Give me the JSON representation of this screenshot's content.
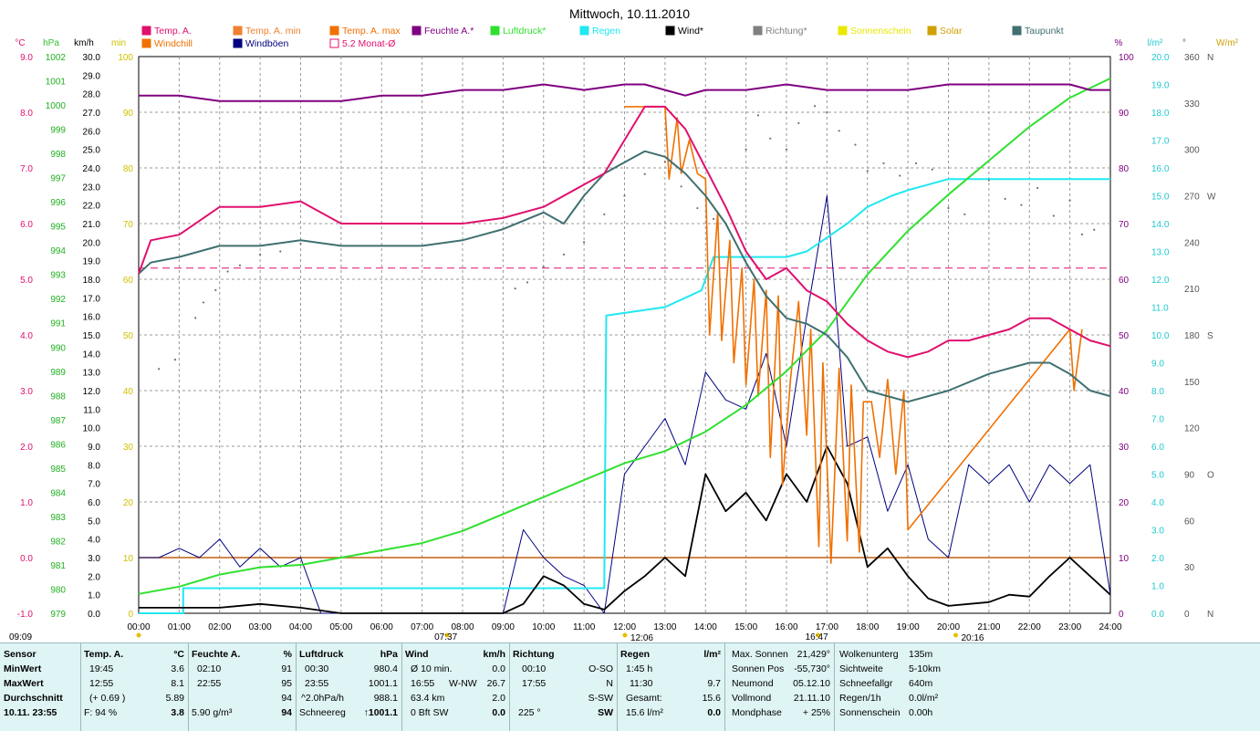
{
  "title": "Mittwoch, 10.11.2010",
  "colors": {
    "temp": "#e0106e",
    "temp_min": "#f08030",
    "temp_max": "#f07000",
    "windchill": "#f07000",
    "windboeen": "#000080",
    "humidity": "#800080",
    "pressure": "#30e030",
    "rain": "#20e8f0",
    "wind": "#000000",
    "direction": "#707070",
    "sun": "#e8e800",
    "solar": "#d0a000",
    "dewpoint": "#407070"
  },
  "legend": [
    {
      "label": "Temp. A.",
      "color": "#e0106e",
      "row": 1
    },
    {
      "label": "Temp. A. min",
      "color": "#f08030",
      "row": 1
    },
    {
      "label": "Temp. A. max",
      "color": "#f07000",
      "row": 1
    },
    {
      "label": "Feuchte A.*",
      "color": "#800080",
      "row": 1
    },
    {
      "label": "Luftdruck*",
      "color": "#30e030",
      "row": 1
    },
    {
      "label": "Regen",
      "color": "#20e8f0",
      "row": 1
    },
    {
      "label": "Wind*",
      "color": "#000000",
      "row": 1
    },
    {
      "label": "Richtung*",
      "color": "#808080",
      "row": 1
    },
    {
      "label": "Sonnenschein",
      "color": "#e8e800",
      "row": 1
    },
    {
      "label": "Solar",
      "color": "#d0a000",
      "row": 1
    },
    {
      "label": "Taupunkt",
      "color": "#407070",
      "row": 1
    },
    {
      "label": "Windchill",
      "color": "#f07000",
      "row": 2
    },
    {
      "label": "Windböen",
      "color": "#000080",
      "row": 2
    },
    {
      "label": "5.2 Monat-Ø",
      "color": "#e0106e",
      "row": 2
    }
  ],
  "unit_labels": {
    "temp": "°C",
    "hpa": "hPa",
    "kmh": "km/h",
    "min": "min",
    "pct": "%",
    "lm2": "l/m²",
    "deg": "°",
    "wm2": "W/m²"
  },
  "axes": {
    "temp": {
      "min": -1.0,
      "max": 9.0,
      "step": 1.0
    },
    "hpa": {
      "min": 979,
      "max": 1002,
      "step": 1
    },
    "kmh": {
      "min": 0,
      "max": 30,
      "step": 1
    },
    "min": {
      "min": 0,
      "max": 100,
      "step": 10
    },
    "pct": {
      "min": 0,
      "max": 100,
      "step": 10
    },
    "lm2": {
      "min": 0,
      "max": 20,
      "step": 1
    },
    "deg": {
      "min": 0,
      "max": 360,
      "step": 30
    },
    "wm2": {
      "min": 0,
      "max": 360
    }
  },
  "dir_labels": [
    {
      "v": 0,
      "t": "N"
    },
    {
      "v": 90,
      "t": "O"
    },
    {
      "v": 180,
      "t": "S"
    },
    {
      "v": 270,
      "t": "W"
    },
    {
      "v": 360,
      "t": "N"
    }
  ],
  "x_ticks": [
    "00:00",
    "01:00",
    "02:00",
    "03:00",
    "04:00",
    "05:00",
    "06:00",
    "07:00",
    "08:00",
    "09:00",
    "10:00",
    "11:00",
    "12:00",
    "13:00",
    "14:00",
    "15:00",
    "16:00",
    "17:00",
    "18:00",
    "19:00",
    "20:00",
    "21:00",
    "22:00",
    "23:00",
    "24:00"
  ],
  "sun_marks": [
    {
      "label": "09:09",
      "x": 0.0,
      "row": 2
    },
    {
      "label": "07:37",
      "x": 7.62,
      "row": 2
    },
    {
      "label": "12:06",
      "x": 12.1,
      "row": 1
    },
    {
      "label": "16:47",
      "x": 16.78,
      "row": 2
    },
    {
      "label": "20:16",
      "x": 20.27,
      "row": 1
    }
  ],
  "chart_data": {
    "type": "line",
    "x_unit": "hours",
    "xlim": [
      0,
      24
    ],
    "reference_line": {
      "name": "5.2 Monat-Ø",
      "axis": "temp",
      "value": 5.2
    },
    "solar_line": {
      "axis": "kmh",
      "value": 3.0
    },
    "series": [
      {
        "name": "Feuchte A.*",
        "axis": "pct",
        "x": [
          0,
          1,
          2,
          3,
          4,
          5,
          6,
          7,
          8,
          9,
          10,
          11,
          12,
          12.5,
          13,
          13.5,
          14,
          15,
          16,
          17,
          18,
          19,
          20,
          21,
          22,
          23,
          23.5,
          24
        ],
        "y": [
          93,
          93,
          92,
          92,
          92,
          92,
          93,
          93,
          94,
          94,
          95,
          94,
          95,
          95,
          94,
          93,
          94,
          94,
          95,
          94,
          94,
          94,
          95,
          95,
          95,
          95,
          94,
          94
        ]
      },
      {
        "name": "Temp. A.",
        "axis": "temp",
        "x": [
          0,
          0.3,
          1,
          2,
          3,
          4,
          5,
          6,
          7,
          8,
          9,
          10,
          11,
          11.5,
          12,
          12.5,
          13,
          13.5,
          14,
          14.5,
          15,
          15.5,
          16,
          16.5,
          17,
          17.5,
          18,
          18.5,
          19,
          19.5,
          20,
          20.5,
          21,
          21.5,
          22,
          22.5,
          23,
          23.5,
          24
        ],
        "y": [
          5.1,
          5.7,
          5.8,
          6.3,
          6.3,
          6.4,
          6.0,
          6.0,
          6.0,
          6.0,
          6.1,
          6.3,
          6.7,
          6.9,
          7.5,
          8.1,
          8.1,
          7.7,
          7.0,
          6.3,
          5.5,
          5.0,
          5.2,
          4.8,
          4.6,
          4.2,
          3.9,
          3.7,
          3.6,
          3.7,
          3.9,
          3.9,
          4.0,
          4.1,
          4.3,
          4.3,
          4.1,
          3.9,
          3.8
        ]
      },
      {
        "name": "Taupunkt",
        "axis": "temp",
        "x": [
          0,
          0.3,
          1,
          2,
          3,
          4,
          5,
          6,
          7,
          8,
          9,
          10,
          10.5,
          11,
          11.5,
          12,
          12.5,
          13,
          13.5,
          14,
          14.5,
          15,
          15.5,
          16,
          16.5,
          17,
          17.5,
          18,
          18.5,
          19,
          19.5,
          20,
          21,
          22,
          22.5,
          23,
          23.5,
          24
        ],
        "y": [
          5.1,
          5.3,
          5.4,
          5.6,
          5.6,
          5.7,
          5.6,
          5.6,
          5.6,
          5.7,
          5.9,
          6.2,
          6.0,
          6.5,
          6.9,
          7.1,
          7.3,
          7.2,
          6.9,
          6.5,
          6.0,
          5.3,
          4.7,
          4.3,
          4.2,
          4.0,
          3.6,
          3.0,
          2.9,
          2.8,
          2.9,
          3.0,
          3.3,
          3.5,
          3.5,
          3.3,
          3.0,
          2.9
        ]
      },
      {
        "name": "Luftdruck*",
        "axis": "hpa",
        "x": [
          0,
          1,
          2,
          3,
          4,
          5,
          6,
          7,
          8,
          9,
          10,
          11,
          12,
          13,
          14,
          15,
          16,
          17,
          18,
          19,
          20,
          21,
          22,
          23,
          24
        ],
        "y": [
          979.8,
          980.1,
          980.6,
          980.9,
          981.0,
          981.3,
          981.6,
          981.9,
          982.4,
          983.1,
          983.8,
          984.5,
          985.2,
          985.7,
          986.5,
          987.6,
          989.0,
          990.7,
          993.0,
          994.8,
          996.3,
          997.7,
          999.1,
          1000.3,
          1001.1
        ]
      },
      {
        "name": "Regen",
        "axis": "lm2",
        "x": [
          0,
          1.1,
          1.1,
          11.5,
          11.55,
          13,
          13.9,
          14.2,
          15,
          16,
          16.5,
          17,
          17.5,
          18,
          18.6,
          19,
          19.5,
          20,
          20,
          24
        ],
        "y": [
          0,
          0,
          0.9,
          0.9,
          10.7,
          11.0,
          11.6,
          12.8,
          12.8,
          12.8,
          13.0,
          13.5,
          14.0,
          14.6,
          15.0,
          15.2,
          15.4,
          15.6,
          15.6,
          15.6
        ]
      },
      {
        "name": "Wind*",
        "axis": "kmh",
        "x": [
          0,
          1,
          2,
          3,
          4,
          5,
          6,
          7,
          8,
          9,
          9.5,
          10,
          10.5,
          11,
          11.5,
          12,
          12.5,
          13,
          13.5,
          14,
          14.5,
          15,
          15.5,
          16,
          16.5,
          17,
          17.5,
          18,
          18.5,
          19,
          19.5,
          20,
          20.5,
          21,
          21.5,
          22,
          22.5,
          23,
          23.5,
          24
        ],
        "y": [
          0.3,
          0.3,
          0.3,
          0.5,
          0.3,
          0,
          0,
          0,
          0,
          0,
          0.5,
          2.0,
          1.5,
          0.5,
          0.2,
          1.2,
          2.0,
          3.0,
          2.0,
          7.5,
          5.5,
          6.5,
          5.0,
          7.5,
          6.0,
          9.0,
          7.0,
          2.5,
          3.5,
          2.0,
          0.8,
          0.4,
          0.5,
          0.6,
          1.0,
          0.9,
          2.0,
          3.0,
          2.0,
          1.0
        ]
      },
      {
        "name": "Windböen",
        "axis": "kmh",
        "x": [
          0,
          0.5,
          1,
          1.5,
          2,
          2.5,
          3,
          3.5,
          4,
          4.5,
          9,
          9.5,
          10,
          10.5,
          11,
          11.5,
          12,
          12.5,
          13,
          13.5,
          14,
          14.5,
          15,
          15.5,
          16,
          16.5,
          17,
          17.5,
          18,
          18.5,
          19,
          19.5,
          20,
          20.5,
          21,
          21.5,
          22,
          22.5,
          23,
          23.5,
          24
        ],
        "y": [
          3.0,
          3.0,
          3.5,
          3.0,
          4.0,
          2.5,
          3.5,
          2.5,
          3.0,
          0,
          0,
          4.5,
          3.0,
          2.0,
          1.5,
          0,
          7.5,
          9.0,
          10.5,
          8.0,
          13.0,
          11.5,
          11.0,
          14.0,
          9.0,
          16.0,
          22.5,
          9.0,
          9.5,
          5.5,
          8.0,
          4.0,
          3.0,
          8.0,
          7.0,
          8.0,
          6.0,
          8.0,
          7.0,
          8.0,
          1.0
        ]
      },
      {
        "name": "Richtung*",
        "axis": "deg",
        "points": [
          [
            0.5,
            158
          ],
          [
            0.9,
            164
          ],
          [
            1.4,
            191
          ],
          [
            1.6,
            201
          ],
          [
            1.9,
            209
          ],
          [
            2.2,
            221
          ],
          [
            2.5,
            225
          ],
          [
            3.0,
            232
          ],
          [
            3.5,
            234
          ],
          [
            4.0,
            239
          ],
          [
            9.3,
            210
          ],
          [
            9.6,
            214
          ],
          [
            10.0,
            224
          ],
          [
            10.5,
            232
          ],
          [
            11.0,
            240
          ],
          [
            11.5,
            258
          ],
          [
            12.0,
            270
          ],
          [
            12.5,
            284
          ],
          [
            13.0,
            292
          ],
          [
            13.4,
            276
          ],
          [
            13.8,
            262
          ],
          [
            14.2,
            255
          ],
          [
            15.0,
            300
          ],
          [
            15.3,
            322
          ],
          [
            15.6,
            307
          ],
          [
            16.0,
            300
          ],
          [
            16.3,
            317
          ],
          [
            16.7,
            328
          ],
          [
            17.0,
            324
          ],
          [
            17.3,
            312
          ],
          [
            17.7,
            303
          ],
          [
            18.0,
            286
          ],
          [
            18.4,
            291
          ],
          [
            18.8,
            283
          ],
          [
            19.2,
            291
          ],
          [
            19.6,
            287
          ],
          [
            20.0,
            262
          ],
          [
            20.4,
            258
          ],
          [
            21.0,
            280
          ],
          [
            21.4,
            268
          ],
          [
            21.8,
            264
          ],
          [
            22.2,
            275
          ],
          [
            22.6,
            257
          ],
          [
            23.0,
            267
          ],
          [
            23.3,
            245
          ],
          [
            23.6,
            248
          ]
        ]
      },
      {
        "name": "Temp. A. max",
        "axis": "temp",
        "x": [
          12,
          12.5,
          13,
          13.1,
          13.3,
          13.4,
          13.6,
          13.8,
          14,
          14.1,
          14.3,
          14.4,
          14.6,
          14.7,
          14.9,
          15.0,
          15.2,
          15.3,
          15.5,
          15.6,
          15.8,
          15.9,
          16.1,
          16.3,
          16.5,
          16.6,
          16.8,
          16.9,
          17.1,
          17.3,
          17.5,
          17.6,
          17.8,
          17.9,
          18.1,
          18.3,
          18.5,
          18.7,
          18.9,
          19.0,
          23.0,
          23.1,
          23.3
        ],
        "y": [
          8.1,
          8.1,
          8.1,
          6.8,
          7.9,
          6.9,
          7.5,
          6.9,
          6.8,
          4.0,
          6.2,
          3.9,
          5.7,
          3.5,
          5.2,
          3.1,
          5.0,
          2.9,
          4.8,
          1.8,
          4.7,
          1.3,
          3.2,
          4.6,
          2.2,
          4.1,
          0.2,
          3.5,
          -0.1,
          3.4,
          0.3,
          3.1,
          0.1,
          2.8,
          2.8,
          1.8,
          3.2,
          1.5,
          3.0,
          0.5,
          4.1,
          3.0,
          4.1
        ]
      }
    ]
  },
  "footer": {
    "sensor": {
      "title": "Sensor",
      "rows": [
        "MinWert",
        "MaxWert",
        "Durchschnitt"
      ],
      "last": "10.11.  23:55"
    },
    "temp": {
      "title": "Temp. A.",
      "unit": "°C",
      "rows": [
        [
          "19:45",
          "3.6"
        ],
        [
          "12:55",
          "8.1"
        ],
        [
          "(+ 0.69 )",
          "5.89"
        ]
      ],
      "last_left": "F: 94 %",
      "last_right": "3.8"
    },
    "humidity": {
      "title": "Feuchte A.",
      "unit": "%",
      "rows": [
        [
          "02:10",
          "91"
        ],
        [
          "22:55",
          "95"
        ],
        [
          "",
          "94"
        ]
      ],
      "last_left": "5.90 g/m³",
      "last_right": "94"
    },
    "pressure": {
      "title": "Luftdruck",
      "unit": "hPa",
      "rows": [
        [
          "00:30",
          "980.4"
        ],
        [
          "23:55",
          "1001.1"
        ],
        [
          "^2.0hPa/h",
          "988.1"
        ]
      ],
      "last_left": "Schneereg",
      "last_right": "↑1001.1"
    },
    "wind": {
      "title": "Wind",
      "unit": "km/h",
      "rows": [
        [
          "Ø 10 min.",
          "",
          "0.0"
        ],
        [
          "16:55",
          "W-NW",
          "26.7"
        ],
        [
          "63.4 km",
          "",
          "2.0"
        ]
      ],
      "last_left": "0 Bft SW",
      "last_right": "0.0"
    },
    "direction": {
      "title": "Richtung",
      "rows": [
        [
          "00:10",
          "O-SO"
        ],
        [
          "17:55",
          "N"
        ],
        [
          "",
          "S-SW"
        ]
      ],
      "last_left": "225 °",
      "last_right": "SW"
    },
    "rain": {
      "title": "Regen",
      "unit": "l/m²",
      "rows": [
        [
          "1:45 h",
          ""
        ],
        [
          "11:30",
          "9.7"
        ],
        [
          "Gesamt:",
          "15.6"
        ]
      ],
      "last_left": "15.6 l/m²",
      "last_right": "0.0"
    },
    "astro": [
      [
        "Max. Sonnen",
        "21,429°"
      ],
      [
        "Sonnen Pos",
        "-55,730°"
      ],
      [
        "Neumond",
        "05.12.10"
      ],
      [
        "Vollmond",
        "21.11.10"
      ],
      [
        "Mondphase",
        "+ 25%"
      ]
    ],
    "misc": [
      [
        "Wolkenunterg",
        "135m"
      ],
      [
        "Sichtweite",
        "5-10km"
      ],
      [
        "Schneefallgr",
        "640m"
      ],
      [
        "Regen/1h",
        "0.0l/m²"
      ],
      [
        "Sonnenschein",
        "0.00h"
      ]
    ]
  }
}
